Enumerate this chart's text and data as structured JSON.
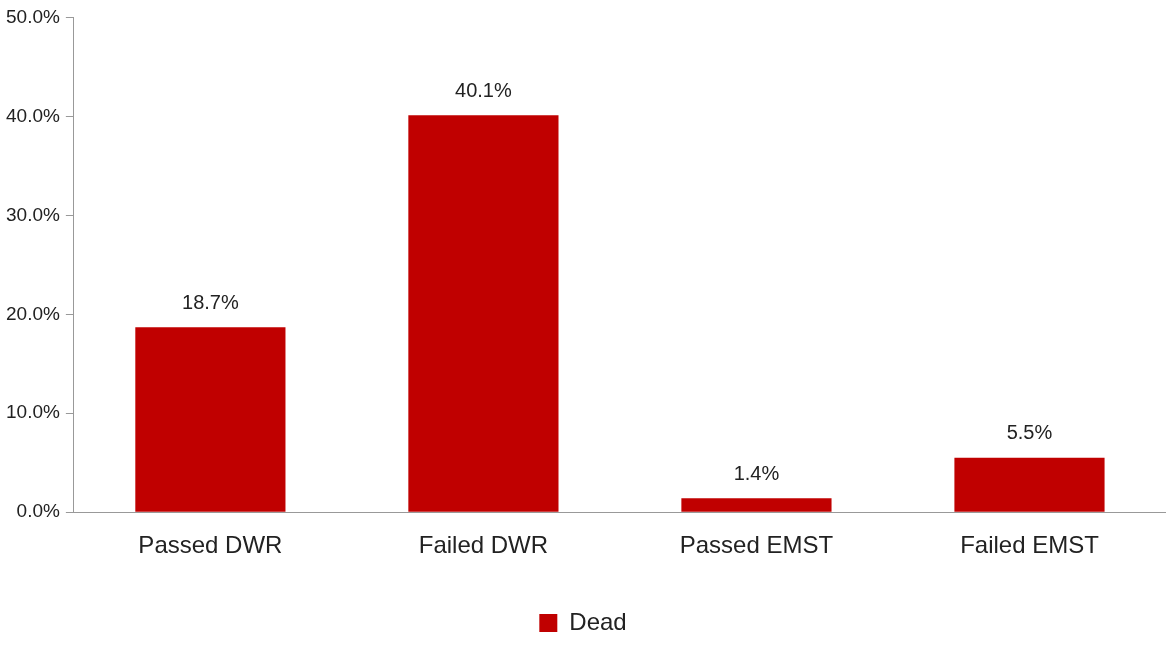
{
  "chart_data": {
    "type": "bar",
    "categories": [
      "Passed DWR",
      "Failed DWR",
      "Passed EMST",
      "Failed EMST"
    ],
    "series": [
      {
        "name": "Dead",
        "color": "#c00000",
        "values": [
          18.7,
          40.1,
          1.4,
          5.5
        ],
        "value_labels": [
          "18.7%",
          "40.1%",
          "1.4%",
          "5.5%"
        ]
      }
    ],
    "ylim": [
      0,
      50
    ],
    "yticks": [
      {
        "value": 0,
        "label": "0.0%"
      },
      {
        "value": 10,
        "label": "10.0%"
      },
      {
        "value": 20,
        "label": "20.0%"
      },
      {
        "value": 30,
        "label": "30.0%"
      },
      {
        "value": 40,
        "label": "40.0%"
      },
      {
        "value": 50,
        "label": "50.0%"
      }
    ],
    "grid": false,
    "legend": "bottom"
  }
}
